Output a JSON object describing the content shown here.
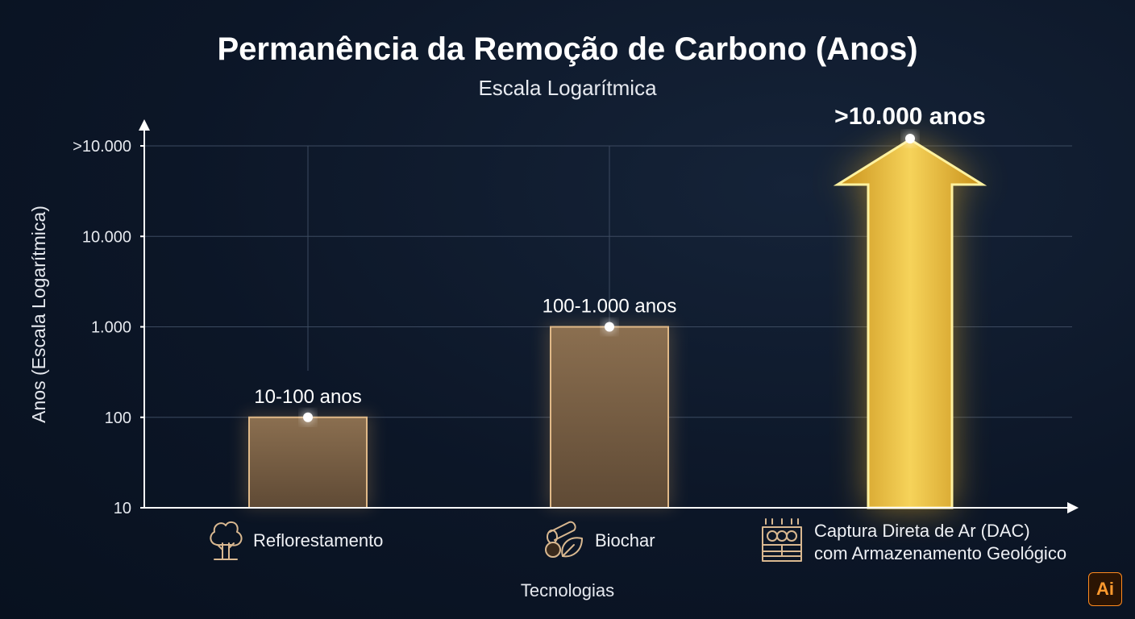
{
  "chart_data": {
    "type": "bar",
    "title": "Permanência da Remoção de Carbono (Anos)",
    "subtitle": "Escala Logarítmica",
    "ylabel": "Anos (Escala Logarítmica)",
    "xlabel": "Tecnologias",
    "yscale": "log",
    "ylim": [
      10,
      100000
    ],
    "y_ticks": [
      10,
      100,
      1000,
      10000,
      100000
    ],
    "y_tick_labels": [
      "10",
      "100",
      "1.000",
      "10.000",
      ">10.000"
    ],
    "grid": true,
    "categories": [
      [
        "Reflorestamento"
      ],
      [
        "Biochar"
      ],
      [
        "Captura Direta de Ar (DAC)",
        "com Armazenamento Geológico"
      ]
    ],
    "icons": [
      "tree-icon",
      "biochar-icon",
      "dac-machine-icon"
    ],
    "values": [
      100,
      1000,
      100000
    ],
    "ranges": [
      [
        10,
        100
      ],
      [
        100,
        1000
      ],
      [
        10000,
        100000
      ]
    ],
    "data_labels": [
      "10-100 anos",
      "100-1.000 anos",
      ">10.000 anos"
    ],
    "colors": {
      "bar": "#7b6145",
      "bar_edge": "#e0b988",
      "highlight": "#f2c432",
      "highlight_edge": "#fff2a0",
      "grid": "#3c4a60",
      "axis": "#ffffff"
    }
  },
  "badge": {
    "label": "Ai"
  }
}
